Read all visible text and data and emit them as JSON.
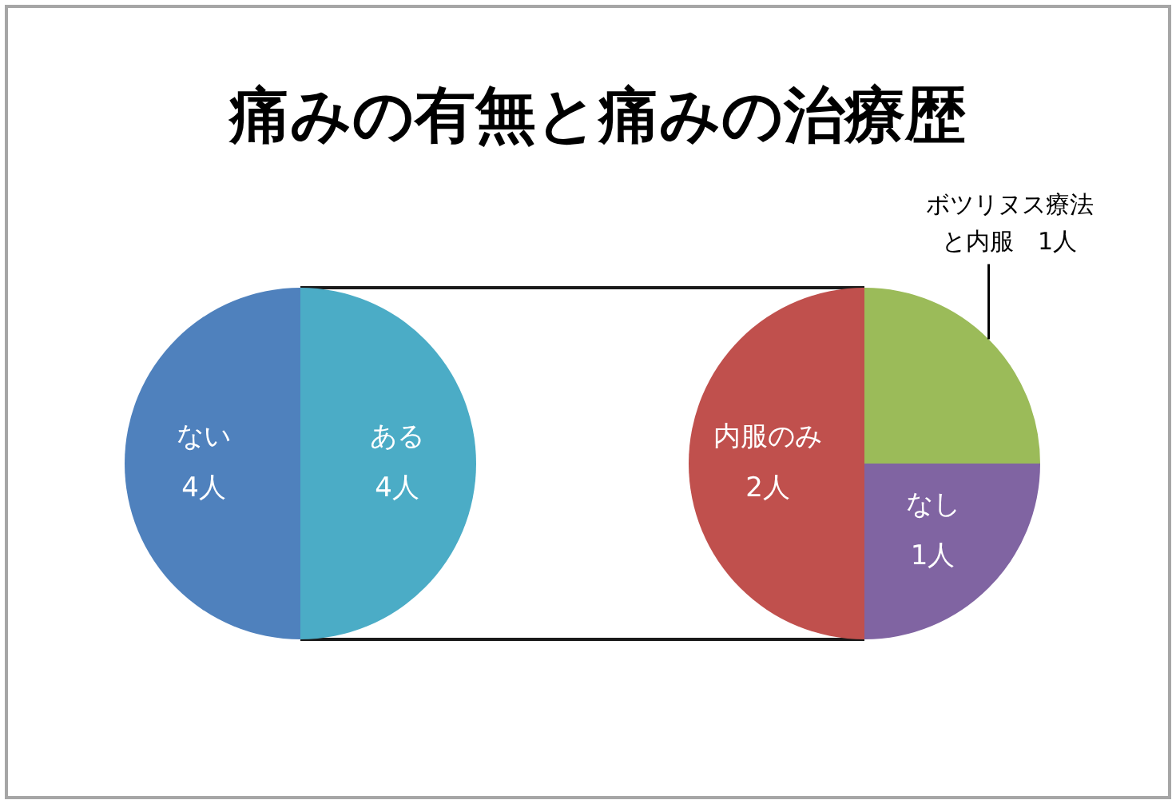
{
  "chart_data": [
    {
      "type": "pie",
      "title": "痛みの有無と痛みの治療歴",
      "categories": [
        "ある",
        "ない"
      ],
      "values": [
        4,
        4
      ],
      "value_labels": [
        "4人",
        "4人"
      ],
      "colors": [
        "#4bacc6",
        "#4f81bd"
      ]
    },
    {
      "type": "pie",
      "categories": [
        "ボツリヌス療法と内服",
        "なし",
        "内服のみ"
      ],
      "values": [
        1,
        1,
        2
      ],
      "value_labels": [
        "1人",
        "1人",
        "2人"
      ],
      "colors": [
        "#9bbb59",
        "#8064a2",
        "#c0504d"
      ]
    }
  ]
}
